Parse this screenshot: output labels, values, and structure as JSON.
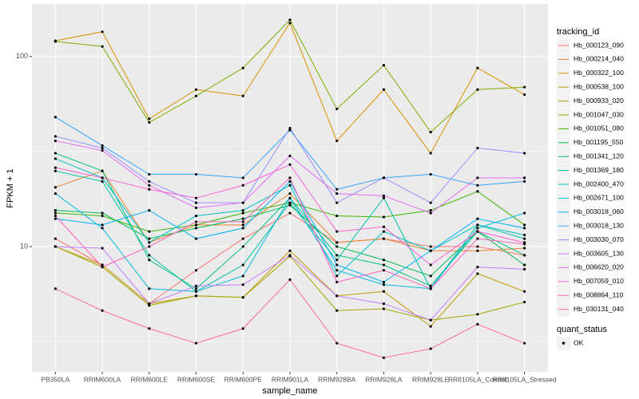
{
  "chart_data": {
    "type": "line",
    "log_scale": true,
    "grid": true,
    "x_label": "sample_name",
    "y_label": "FPKM + 1",
    "legend_title": "tracking_id",
    "legend_position": "right",
    "point_color": "#000000",
    "quant_status": {
      "title": "quant_status",
      "labels": [
        "OK"
      ]
    },
    "categories": [
      "PB350LA",
      "RRIM600LA",
      "RRIM600LE",
      "RRIM600SE",
      "RRIM600PE",
      "RRIM901LA",
      "RRIM928BA",
      "RRIM928LA",
      "RRIM928LE",
      "RRII105LA_Control",
      "RRII105LA_Stressed"
    ],
    "ylim": [
      2.19,
      189
    ],
    "yticks": [
      10,
      100
    ],
    "series": [
      {
        "name": "Hb_000123_090",
        "color": "#F8766D",
        "values": [
          11,
          8,
          5,
          7.5,
          11,
          15,
          10.5,
          11,
          10,
          10,
          9
        ]
      },
      {
        "name": "Hb_000214_040",
        "color": "#EA8331",
        "values": [
          20.5,
          25,
          10.5,
          13,
          13,
          19,
          10.5,
          11,
          9.5,
          9.5,
          9.8
        ]
      },
      {
        "name": "Hb_000322_100",
        "color": "#D89000",
        "values": [
          121,
          135,
          47,
          67,
          62,
          150,
          36,
          67,
          31,
          87,
          63
        ]
      },
      {
        "name": "Hb_000538_100",
        "color": "#C09B00",
        "values": [
          10,
          8,
          5,
          5.5,
          5.4,
          9.5,
          5.5,
          5.8,
          3.8,
          7.2,
          5.8
        ]
      },
      {
        "name": "Hb_000933_020",
        "color": "#A3A500",
        "values": [
          10,
          7.8,
          4.9,
          5.5,
          5.4,
          8.9,
          4.6,
          4.7,
          4.1,
          4.4,
          5.1
        ]
      },
      {
        "name": "Hb_001047_030",
        "color": "#7CAE00",
        "values": [
          120,
          113,
          45,
          62,
          87,
          156,
          53,
          90,
          40,
          67,
          69
        ]
      },
      {
        "name": "Hb_001051_080",
        "color": "#39B600",
        "values": [
          15,
          14.5,
          12,
          13,
          15,
          17,
          14.5,
          14.3,
          15.5,
          19.5,
          13
        ]
      },
      {
        "name": "Hb_001195_550",
        "color": "#00BB4E",
        "values": [
          15.5,
          15,
          11,
          12.5,
          14,
          16.5,
          10,
          8.5,
          7,
          12,
          8
        ]
      },
      {
        "name": "Hb_001341_120",
        "color": "#00BF7D",
        "values": [
          31,
          25,
          8.5,
          6,
          10,
          18,
          9,
          8,
          6.2,
          12,
          9
        ]
      },
      {
        "name": "Hb_001369_180",
        "color": "#00C1A3",
        "values": [
          25,
          22,
          9,
          5.8,
          8,
          17,
          8.5,
          18,
          6,
          13,
          11
        ]
      },
      {
        "name": "Hb_002400_470",
        "color": "#00BFC4",
        "values": [
          29,
          23,
          10.5,
          14.5,
          15.5,
          21,
          7,
          12,
          9.5,
          13,
          11.5
        ]
      },
      {
        "name": "Hb_002671_100",
        "color": "#00BAE0",
        "values": [
          19,
          12.5,
          6,
          5.8,
          7,
          18,
          7.5,
          6.3,
          6,
          12.5,
          15
        ]
      },
      {
        "name": "Hb_003018_060",
        "color": "#00B0F6",
        "values": [
          14,
          13,
          15.5,
          11,
          12.5,
          22,
          8,
          6.5,
          9.5,
          14,
          12.5
        ]
      },
      {
        "name": "Hb_003018_130",
        "color": "#35A2FF",
        "values": [
          48,
          34,
          24,
          24,
          23,
          41,
          20,
          23,
          24,
          21,
          22
        ]
      },
      {
        "name": "Hb_003030_070",
        "color": "#9590FF",
        "values": [
          38,
          33,
          22,
          17,
          17,
          42,
          17,
          23,
          17,
          33,
          31
        ]
      },
      {
        "name": "Hb_003605_130",
        "color": "#C77CFF",
        "values": [
          10,
          9.8,
          5,
          6.2,
          6.3,
          9,
          5.5,
          5,
          4.1,
          7.8,
          7.6
        ]
      },
      {
        "name": "Hb_006620_020",
        "color": "#E76BF3",
        "values": [
          36,
          32,
          21,
          16,
          17,
          30,
          19,
          18.5,
          15,
          23,
          23
        ]
      },
      {
        "name": "Hb_007059_010",
        "color": "#FA62DB",
        "values": [
          26,
          23,
          20,
          18,
          21,
          27,
          12,
          12.7,
          8,
          12,
          10.5
        ]
      },
      {
        "name": "Hb_008864_110",
        "color": "#FF62BC",
        "values": [
          14.5,
          7.8,
          10,
          13.5,
          13.5,
          23,
          6.5,
          7.5,
          6,
          11,
          10.3
        ]
      },
      {
        "name": "Hb_030131_040",
        "color": "#FF6C91",
        "values": [
          6,
          4.6,
          3.7,
          3.1,
          3.7,
          6.7,
          3.1,
          2.6,
          2.9,
          3.9,
          3.1
        ]
      }
    ]
  }
}
